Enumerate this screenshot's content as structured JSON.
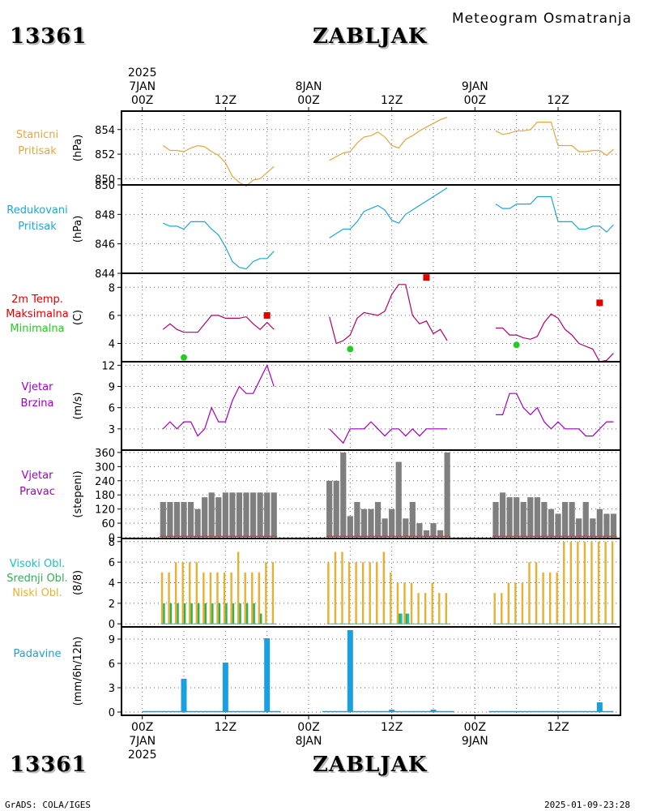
{
  "header": {
    "station_id": "13361",
    "station_name": "ZABLJAK",
    "title": "Meteogram Osmatranja",
    "footer_left": "GrADS: COLA/IGES",
    "footer_right": "2025-01-09-23:28"
  },
  "time_axis": {
    "top_year": "2025",
    "bottom_year": "2025",
    "major_ticks": [
      {
        "h": 0,
        "label": "00Z",
        "date": "7JAN"
      },
      {
        "h": 12,
        "label": "12Z"
      },
      {
        "h": 24,
        "label": "00Z",
        "date": "8JAN"
      },
      {
        "h": 36,
        "label": "12Z"
      },
      {
        "h": 48,
        "label": "00Z",
        "date": "9JAN"
      },
      {
        "h": 60,
        "label": "12Z"
      }
    ],
    "range_hours": [
      -3,
      69
    ]
  },
  "colors": {
    "pressure_station": "#e0a840",
    "pressure_reduced": "#1fa6d6",
    "temp_line": "#b0006a",
    "temp_max": "#e00000",
    "temp_min": "#22cc22",
    "wind": "#a000c0",
    "wind_dir_bar": "#7f7f7f",
    "wind_dir_base": "#cc3333",
    "cloud_high": "#20c0c0",
    "cloud_mid": "#30b050",
    "cloud_low": "#e8b030",
    "precip": "#1aa0e0",
    "grid": "#666666"
  },
  "chart_data": [
    {
      "type": "line",
      "id": "station_pressure",
      "labels": [
        "Stanicni",
        "Pritisak"
      ],
      "ylabel": "(hPa)",
      "ylim": [
        849.5,
        855.5
      ],
      "yticks": [
        850,
        852,
        854
      ],
      "series": [
        {
          "segment": 1,
          "x": [
            3,
            4,
            5,
            6,
            7,
            8,
            9,
            10,
            11,
            12,
            13,
            14,
            15,
            16,
            17,
            18,
            19
          ],
          "y": [
            852.7,
            852.3,
            852.3,
            852.2,
            852.5,
            852.7,
            852.6,
            852.2,
            851.9,
            851.3,
            850.2,
            849.7,
            849.4,
            849.9,
            850.0,
            850.5,
            851.0
          ]
        },
        {
          "segment": 2,
          "x": [
            27,
            28,
            29,
            30,
            31,
            32,
            33,
            34,
            35,
            36,
            37,
            38,
            39,
            40,
            41,
            42,
            43,
            44
          ],
          "y": [
            851.5,
            851.8,
            852.1,
            852.2,
            852.9,
            853.4,
            853.5,
            853.8,
            853.4,
            852.7,
            852.5,
            853.2,
            853.5,
            853.9,
            854.2,
            854.5,
            854.8,
            855.0
          ]
        },
        {
          "segment": 3,
          "x": [
            51,
            52,
            53,
            54,
            55,
            56,
            57,
            58,
            59,
            60,
            61,
            62,
            63,
            64,
            65,
            66,
            67,
            68
          ],
          "y": [
            853.9,
            853.6,
            853.7,
            853.9,
            853.9,
            854.0,
            854.6,
            854.6,
            854.6,
            852.7,
            852.7,
            852.7,
            852.2,
            852.2,
            852.3,
            852.3,
            851.9,
            852.4
          ]
        }
      ]
    },
    {
      "type": "line",
      "id": "reduced_pressure",
      "labels": [
        "Redukovani",
        "Pritisak"
      ],
      "ylabel": "(hPa)",
      "ylim": [
        844,
        850
      ],
      "yticks": [
        844,
        846,
        848,
        850
      ],
      "series": [
        {
          "segment": 1,
          "x": [
            3,
            4,
            5,
            6,
            7,
            8,
            9,
            10,
            11,
            12,
            13,
            14,
            15,
            16,
            17,
            18,
            19
          ],
          "y": [
            847.4,
            847.2,
            847.2,
            847.0,
            847.5,
            847.5,
            847.5,
            847.0,
            846.6,
            845.8,
            844.8,
            844.4,
            844.3,
            844.8,
            845.0,
            845.0,
            845.5
          ]
        },
        {
          "segment": 2,
          "x": [
            27,
            28,
            29,
            30,
            31,
            32,
            33,
            34,
            35,
            36,
            37,
            38,
            39,
            40,
            41,
            42,
            43,
            44
          ],
          "y": [
            846.4,
            846.7,
            847.0,
            847.0,
            847.5,
            848.2,
            848.4,
            848.6,
            848.3,
            847.6,
            847.4,
            848.0,
            848.3,
            848.6,
            848.9,
            849.2,
            849.5,
            849.8
          ]
        },
        {
          "segment": 3,
          "x": [
            51,
            52,
            53,
            54,
            55,
            56,
            57,
            58,
            59,
            60,
            61,
            62,
            63,
            64,
            65,
            66,
            67,
            68
          ],
          "y": [
            848.7,
            848.4,
            848.4,
            848.7,
            848.7,
            848.7,
            849.2,
            849.2,
            849.2,
            847.5,
            847.5,
            847.5,
            847.0,
            847.0,
            847.2,
            847.2,
            846.8,
            847.3
          ]
        }
      ]
    },
    {
      "type": "line",
      "id": "temperature",
      "labels": [
        "2m Temp.",
        "Maksimalna",
        "Minimalna"
      ],
      "ylabel": "(C)",
      "ylim": [
        2.7,
        9.0
      ],
      "yticks": [
        4,
        6,
        8
      ],
      "series": [
        {
          "segment": 1,
          "x": [
            3,
            4,
            5,
            6,
            7,
            8,
            9,
            10,
            11,
            12,
            13,
            14,
            15,
            16,
            17,
            18,
            19
          ],
          "y": [
            5.0,
            5.4,
            5.0,
            4.8,
            4.8,
            4.8,
            5.4,
            6.0,
            6.0,
            5.8,
            5.8,
            5.8,
            5.9,
            5.4,
            5.0,
            5.5,
            5.0
          ]
        },
        {
          "segment": 2,
          "x": [
            27,
            28,
            29,
            30,
            31,
            32,
            33,
            34,
            35,
            36,
            37,
            38,
            39,
            40,
            41,
            42,
            43,
            44
          ],
          "y": [
            5.9,
            4.0,
            4.2,
            4.6,
            5.8,
            6.2,
            6.1,
            6.0,
            6.3,
            7.5,
            8.2,
            8.2,
            6.0,
            5.4,
            5.6,
            4.7,
            5.0,
            4.2
          ]
        },
        {
          "segment": 3,
          "x": [
            51,
            52,
            53,
            54,
            55,
            56,
            57,
            58,
            59,
            60,
            61,
            62,
            63,
            64,
            65,
            66,
            67,
            68
          ],
          "y": [
            5.1,
            5.1,
            4.6,
            4.6,
            4.4,
            4.3,
            4.5,
            5.5,
            6.1,
            5.8,
            5.0,
            4.6,
            4.0,
            3.8,
            3.6,
            2.7,
            2.8,
            3.3
          ]
        }
      ],
      "max": [
        {
          "x": 18,
          "y": 6.0
        },
        {
          "x": 41,
          "y": 8.7
        },
        {
          "x": 66,
          "y": 6.9
        }
      ],
      "min": [
        {
          "x": 6,
          "y": 3.0
        },
        {
          "x": 30,
          "y": 3.6
        },
        {
          "x": 54,
          "y": 3.9
        }
      ]
    },
    {
      "type": "line",
      "id": "wind_speed",
      "labels": [
        "Vjetar",
        "Brzina"
      ],
      "ylabel": "(m/s)",
      "ylim": [
        0,
        12.5
      ],
      "yticks": [
        3,
        6,
        9,
        12
      ],
      "series": [
        {
          "segment": 1,
          "x": [
            3,
            4,
            5,
            6,
            7,
            8,
            9,
            10,
            11,
            12,
            13,
            14,
            15,
            16,
            17,
            18,
            19
          ],
          "y": [
            3,
            4,
            3,
            4,
            4,
            2,
            3,
            6,
            4,
            4,
            7,
            9,
            8,
            8,
            10,
            12,
            9
          ]
        },
        {
          "segment": 2,
          "x": [
            27,
            28,
            29,
            30,
            31,
            32,
            33,
            34,
            35,
            36,
            37,
            38,
            39,
            40,
            41,
            42,
            43,
            44
          ],
          "y": [
            3,
            2,
            1,
            3,
            3,
            3,
            4,
            3,
            2,
            3,
            3,
            2,
            3,
            2,
            3,
            3,
            3,
            3
          ]
        },
        {
          "segment": 3,
          "x": [
            51,
            52,
            53,
            54,
            55,
            56,
            57,
            58,
            59,
            60,
            61,
            62,
            63,
            64,
            65,
            66,
            67,
            68
          ],
          "y": [
            5,
            5,
            8,
            8,
            6,
            5,
            6,
            4,
            3,
            4,
            3,
            3,
            3,
            2,
            2,
            3,
            4,
            4
          ]
        }
      ]
    },
    {
      "type": "bar",
      "id": "wind_direction",
      "labels": [
        "Vjetar",
        "Pravac"
      ],
      "ylabel": "(stepeni)",
      "ylim": [
        -5,
        370
      ],
      "yticks": [
        0,
        60,
        120,
        180,
        240,
        300,
        360
      ],
      "x": [
        3,
        4,
        5,
        6,
        7,
        8,
        9,
        10,
        11,
        12,
        13,
        14,
        15,
        16,
        17,
        18,
        19,
        27,
        28,
        29,
        30,
        31,
        32,
        33,
        34,
        35,
        36,
        37,
        38,
        39,
        40,
        41,
        42,
        43,
        44,
        51,
        52,
        53,
        54,
        55,
        56,
        57,
        58,
        59,
        60,
        61,
        62,
        63,
        64,
        65,
        66,
        67,
        68
      ],
      "values": [
        150,
        150,
        150,
        150,
        150,
        120,
        170,
        190,
        170,
        190,
        190,
        190,
        190,
        190,
        190,
        190,
        190,
        240,
        240,
        360,
        90,
        150,
        120,
        120,
        150,
        80,
        120,
        320,
        80,
        150,
        60,
        30,
        60,
        30,
        360,
        150,
        190,
        170,
        170,
        150,
        170,
        170,
        150,
        120,
        100,
        150,
        150,
        80,
        150,
        80,
        120,
        100,
        100
      ]
    },
    {
      "type": "bar",
      "id": "cloud_cover",
      "labels": [
        "Visoki Obl.",
        "Srednji Obl.",
        "Niski Obl."
      ],
      "ylabel": "(8/8)",
      "ylim": [
        -0.3,
        8.3
      ],
      "yticks": [
        0,
        2,
        4,
        6,
        8
      ],
      "x": [
        3,
        4,
        5,
        6,
        7,
        8,
        9,
        10,
        11,
        12,
        13,
        14,
        15,
        16,
        17,
        18,
        19,
        27,
        28,
        29,
        30,
        31,
        32,
        33,
        34,
        35,
        36,
        37,
        38,
        39,
        40,
        41,
        42,
        43,
        44,
        51,
        52,
        53,
        54,
        55,
        56,
        57,
        58,
        59,
        60,
        61,
        62,
        63,
        64,
        65,
        66,
        67,
        68
      ],
      "series": [
        {
          "name": "Niski Obl.",
          "values": [
            5,
            5,
            6,
            6,
            6,
            6,
            5,
            5,
            5,
            5,
            5,
            7,
            5,
            5,
            5,
            6,
            6,
            6,
            7,
            7,
            6,
            6,
            6,
            6,
            6,
            7,
            5,
            4,
            4,
            4,
            3,
            3,
            4,
            3,
            3,
            3,
            3,
            4,
            4,
            4,
            6,
            6,
            5,
            5,
            5,
            8,
            8,
            8,
            8,
            8,
            8,
            8,
            8
          ]
        },
        {
          "name": "Srednji Obl.",
          "values": [
            2,
            2,
            2,
            2,
            2,
            2,
            2,
            2,
            2,
            2,
            2,
            2,
            2,
            2,
            1,
            0,
            0,
            0,
            0,
            0,
            0,
            0,
            0,
            0,
            0,
            0,
            0,
            1,
            1,
            0,
            0,
            0,
            0,
            0,
            0,
            0,
            0,
            0,
            0,
            0,
            0,
            0,
            0,
            0,
            0,
            0,
            0,
            0,
            0,
            0,
            0,
            0,
            0
          ]
        },
        {
          "name": "Visoki Obl.",
          "values": [
            0,
            0,
            0,
            0,
            0,
            0,
            0,
            0,
            0,
            0,
            0,
            0,
            0,
            0,
            0,
            0,
            0,
            0,
            0,
            0,
            0,
            0,
            0,
            0,
            0,
            0,
            0,
            1,
            1,
            0,
            0,
            0,
            0,
            0,
            0,
            0,
            0,
            0,
            0,
            0,
            0,
            0,
            0,
            0,
            0,
            0,
            0,
            0,
            0,
            0,
            0,
            0,
            0
          ]
        }
      ]
    },
    {
      "type": "bar",
      "id": "precipitation",
      "labels": [
        "Padavine"
      ],
      "ylabel": "(mm/6h/12h)",
      "ylim": [
        -0.4,
        10.5
      ],
      "yticks": [
        0,
        3,
        6,
        9
      ],
      "x": [
        6,
        12,
        18,
        30,
        36,
        42,
        66
      ],
      "values": [
        4.1,
        6.1,
        9.1,
        10.1,
        0.3,
        0.3,
        1.2
      ]
    }
  ]
}
